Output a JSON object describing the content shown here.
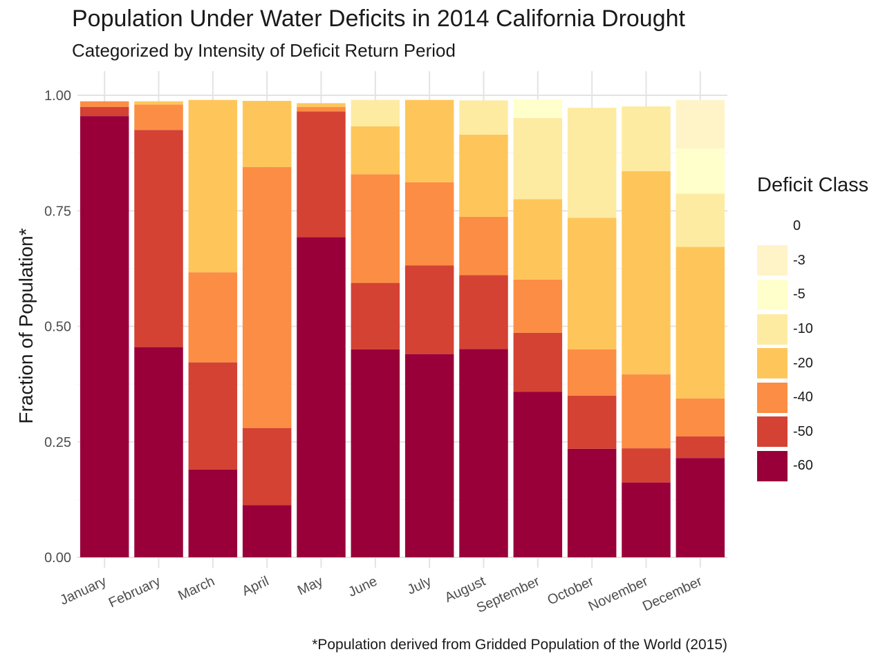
{
  "title": "Population Under Water Deficits in 2014 California Drought",
  "subtitle": "Categorized by Intensity of Deficit Return Period",
  "caption": "*Population derived from Gridded Population of the World (2015)",
  "chart_data": {
    "type": "bar",
    "stacked": true,
    "ylabel": "Fraction of Population*",
    "xlabel": "",
    "ylim": [
      0,
      1
    ],
    "yticks": [
      "0.00",
      "0.25",
      "0.50",
      "0.75",
      "1.00"
    ],
    "grid": true,
    "legend_position": "right",
    "categories": [
      "January",
      "February",
      "March",
      "April",
      "May",
      "June",
      "July",
      "August",
      "September",
      "October",
      "November",
      "December"
    ],
    "series": [
      {
        "name": "-60",
        "color": "#99003a",
        "values": [
          0.955,
          0.455,
          0.19,
          0.113,
          0.693,
          0.45,
          0.44,
          0.451,
          0.358,
          0.235,
          0.162,
          0.215
        ]
      },
      {
        "name": "-50",
        "color": "#d44234",
        "values": [
          0.02,
          0.47,
          0.232,
          0.167,
          0.272,
          0.144,
          0.192,
          0.16,
          0.128,
          0.115,
          0.074,
          0.047
        ]
      },
      {
        "name": "-40",
        "color": "#fc8d44",
        "values": [
          0.012,
          0.055,
          0.195,
          0.565,
          0.01,
          0.235,
          0.18,
          0.126,
          0.115,
          0.1,
          0.16,
          0.082
        ]
      },
      {
        "name": "-20",
        "color": "#fec65a",
        "values": [
          0.0,
          0.007,
          0.373,
          0.143,
          0.008,
          0.104,
          0.178,
          0.178,
          0.174,
          0.285,
          0.44,
          0.328
        ]
      },
      {
        "name": "-10",
        "color": "#feeba2",
        "values": [
          0.0,
          0.0,
          0.0,
          0.0,
          0.0,
          0.057,
          0.0,
          0.074,
          0.176,
          0.238,
          0.14,
          0.115
        ]
      },
      {
        "name": "-5",
        "color": "#ffffcc",
        "values": [
          0.0,
          0.0,
          0.0,
          0.0,
          0.0,
          0.0,
          0.0,
          0.0,
          0.04,
          0.0,
          0.0,
          0.098
        ]
      },
      {
        "name": "-3",
        "color": "#fff4c8",
        "values": [
          0.0,
          0.0,
          0.0,
          0.0,
          0.0,
          0.0,
          0.0,
          0.0,
          0.0,
          0.0,
          0.0,
          0.105
        ]
      },
      {
        "name": "0",
        "color": "#ffffff",
        "values": [
          0.0,
          0.0,
          0.0,
          0.0,
          0.0,
          0.0,
          0.0,
          0.0,
          0.0,
          0.0,
          0.0,
          0.0
        ]
      }
    ]
  },
  "legend": {
    "title": "Deficit Class",
    "items": [
      {
        "label": "0",
        "color": "#ffffff"
      },
      {
        "label": "-3",
        "color": "#fff4c8"
      },
      {
        "label": "-5",
        "color": "#ffffcc"
      },
      {
        "label": "-10",
        "color": "#feeba2"
      },
      {
        "label": "-20",
        "color": "#fec65a"
      },
      {
        "label": "-40",
        "color": "#fc8d44"
      },
      {
        "label": "-50",
        "color": "#d44234"
      },
      {
        "label": "-60",
        "color": "#99003a"
      }
    ]
  }
}
